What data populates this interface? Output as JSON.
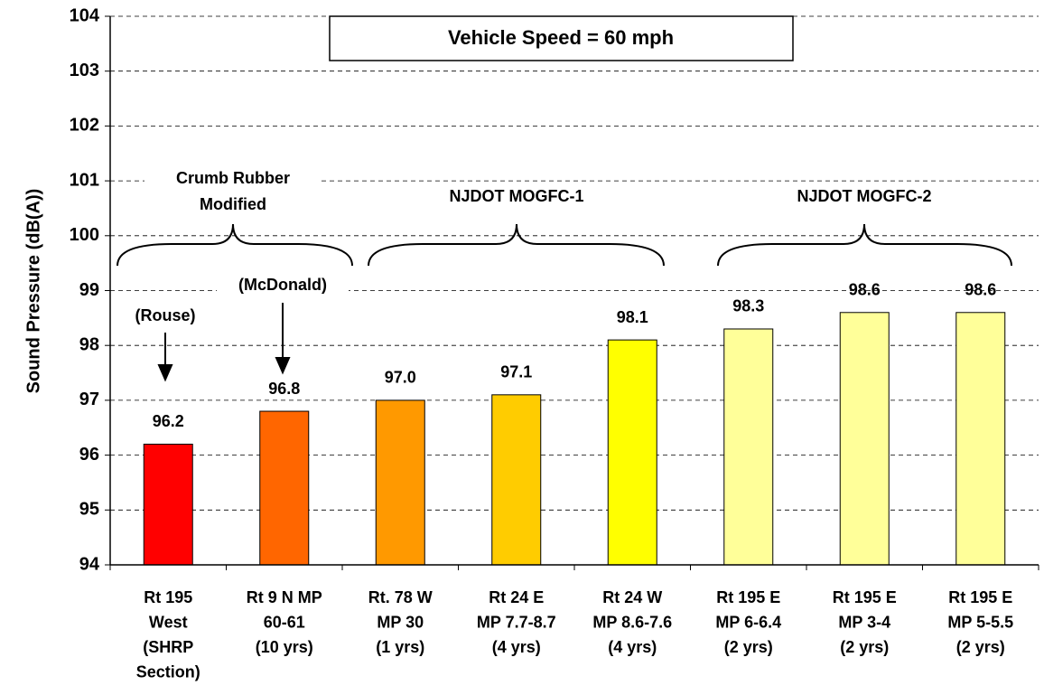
{
  "chart_data": {
    "type": "bar",
    "title": "Vehicle Speed = 60 mph",
    "y_label": "Sound Pressure (dB(A))",
    "categories": [
      [
        "Rt 195",
        "West",
        "(SHRP",
        "Section)"
      ],
      [
        "Rt 9 N MP",
        "60-61",
        "(10 yrs)"
      ],
      [
        "Rt. 78 W",
        "MP 30",
        "(1 yrs)"
      ],
      [
        "Rt 24 E",
        "MP 7.7-8.7",
        "(4 yrs)"
      ],
      [
        "Rt 24 W",
        "MP 8.6-7.6",
        "(4 yrs)"
      ],
      [
        "Rt 195 E",
        "MP 6-6.4",
        "(2 yrs)"
      ],
      [
        "Rt 195 E",
        "MP 3-4",
        "(2 yrs)"
      ],
      [
        "Rt 195 E",
        "MP 5-5.5",
        "(2 yrs)"
      ]
    ],
    "values": [
      96.2,
      96.8,
      97.0,
      97.1,
      98.1,
      98.3,
      98.6,
      98.6
    ],
    "value_labels": [
      "96.2",
      "96.8",
      "97.0",
      "97.1",
      "98.1",
      "98.3",
      "98.6",
      "98.6"
    ],
    "colors": [
      "#ff0000",
      "#ff6600",
      "#ff9900",
      "#ffcc00",
      "#ffff00",
      "#ffff99",
      "#ffff99",
      "#ffff99"
    ],
    "ylim": [
      94,
      104
    ],
    "yticks": [
      94,
      95,
      96,
      97,
      98,
      99,
      100,
      101,
      102,
      103,
      104
    ],
    "grid": true,
    "annotations": [
      "Crumb Rubber",
      "Modified",
      "NJDOT MOGFC-1",
      "NJDOT MOGFC-2",
      "(Rouse)",
      "(McDonald)"
    ]
  }
}
